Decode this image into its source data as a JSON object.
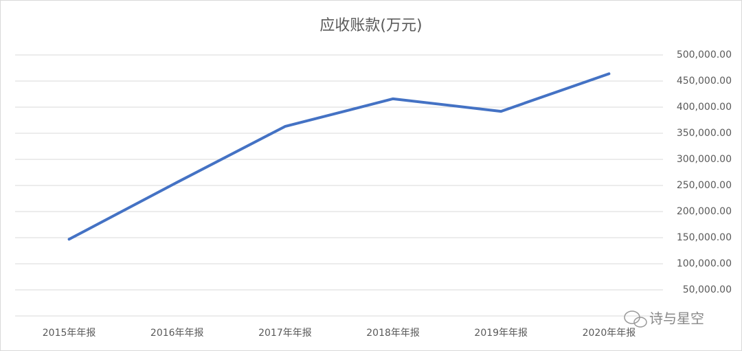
{
  "chart_data": {
    "type": "line",
    "title": "应收账款(万元)",
    "categories": [
      "2015年年报",
      "2016年年报",
      "2017年年报",
      "2018年年报",
      "2019年年报",
      "2020年年报"
    ],
    "series": [
      {
        "name": "应收账款",
        "color": "#4472c4",
        "values": [
          147000,
          256000,
          363000,
          416000,
          392000,
          464000
        ]
      }
    ],
    "ylim": [
      0,
      500000
    ],
    "yticks": [
      {
        "value": 50000,
        "label": "50,000.00"
      },
      {
        "value": 100000,
        "label": "100,000.00"
      },
      {
        "value": 150000,
        "label": "150,000.00"
      },
      {
        "value": 200000,
        "label": "200,000.00"
      },
      {
        "value": 250000,
        "label": "250,000.00"
      },
      {
        "value": 300000,
        "label": "300,000.00"
      },
      {
        "value": 350000,
        "label": "350,000.00"
      },
      {
        "value": 400000,
        "label": "400,000.00"
      },
      {
        "value": 450000,
        "label": "450,000.00"
      },
      {
        "value": 500000,
        "label": "500,000.00"
      }
    ],
    "grid": true,
    "watermark": "诗与星空"
  }
}
